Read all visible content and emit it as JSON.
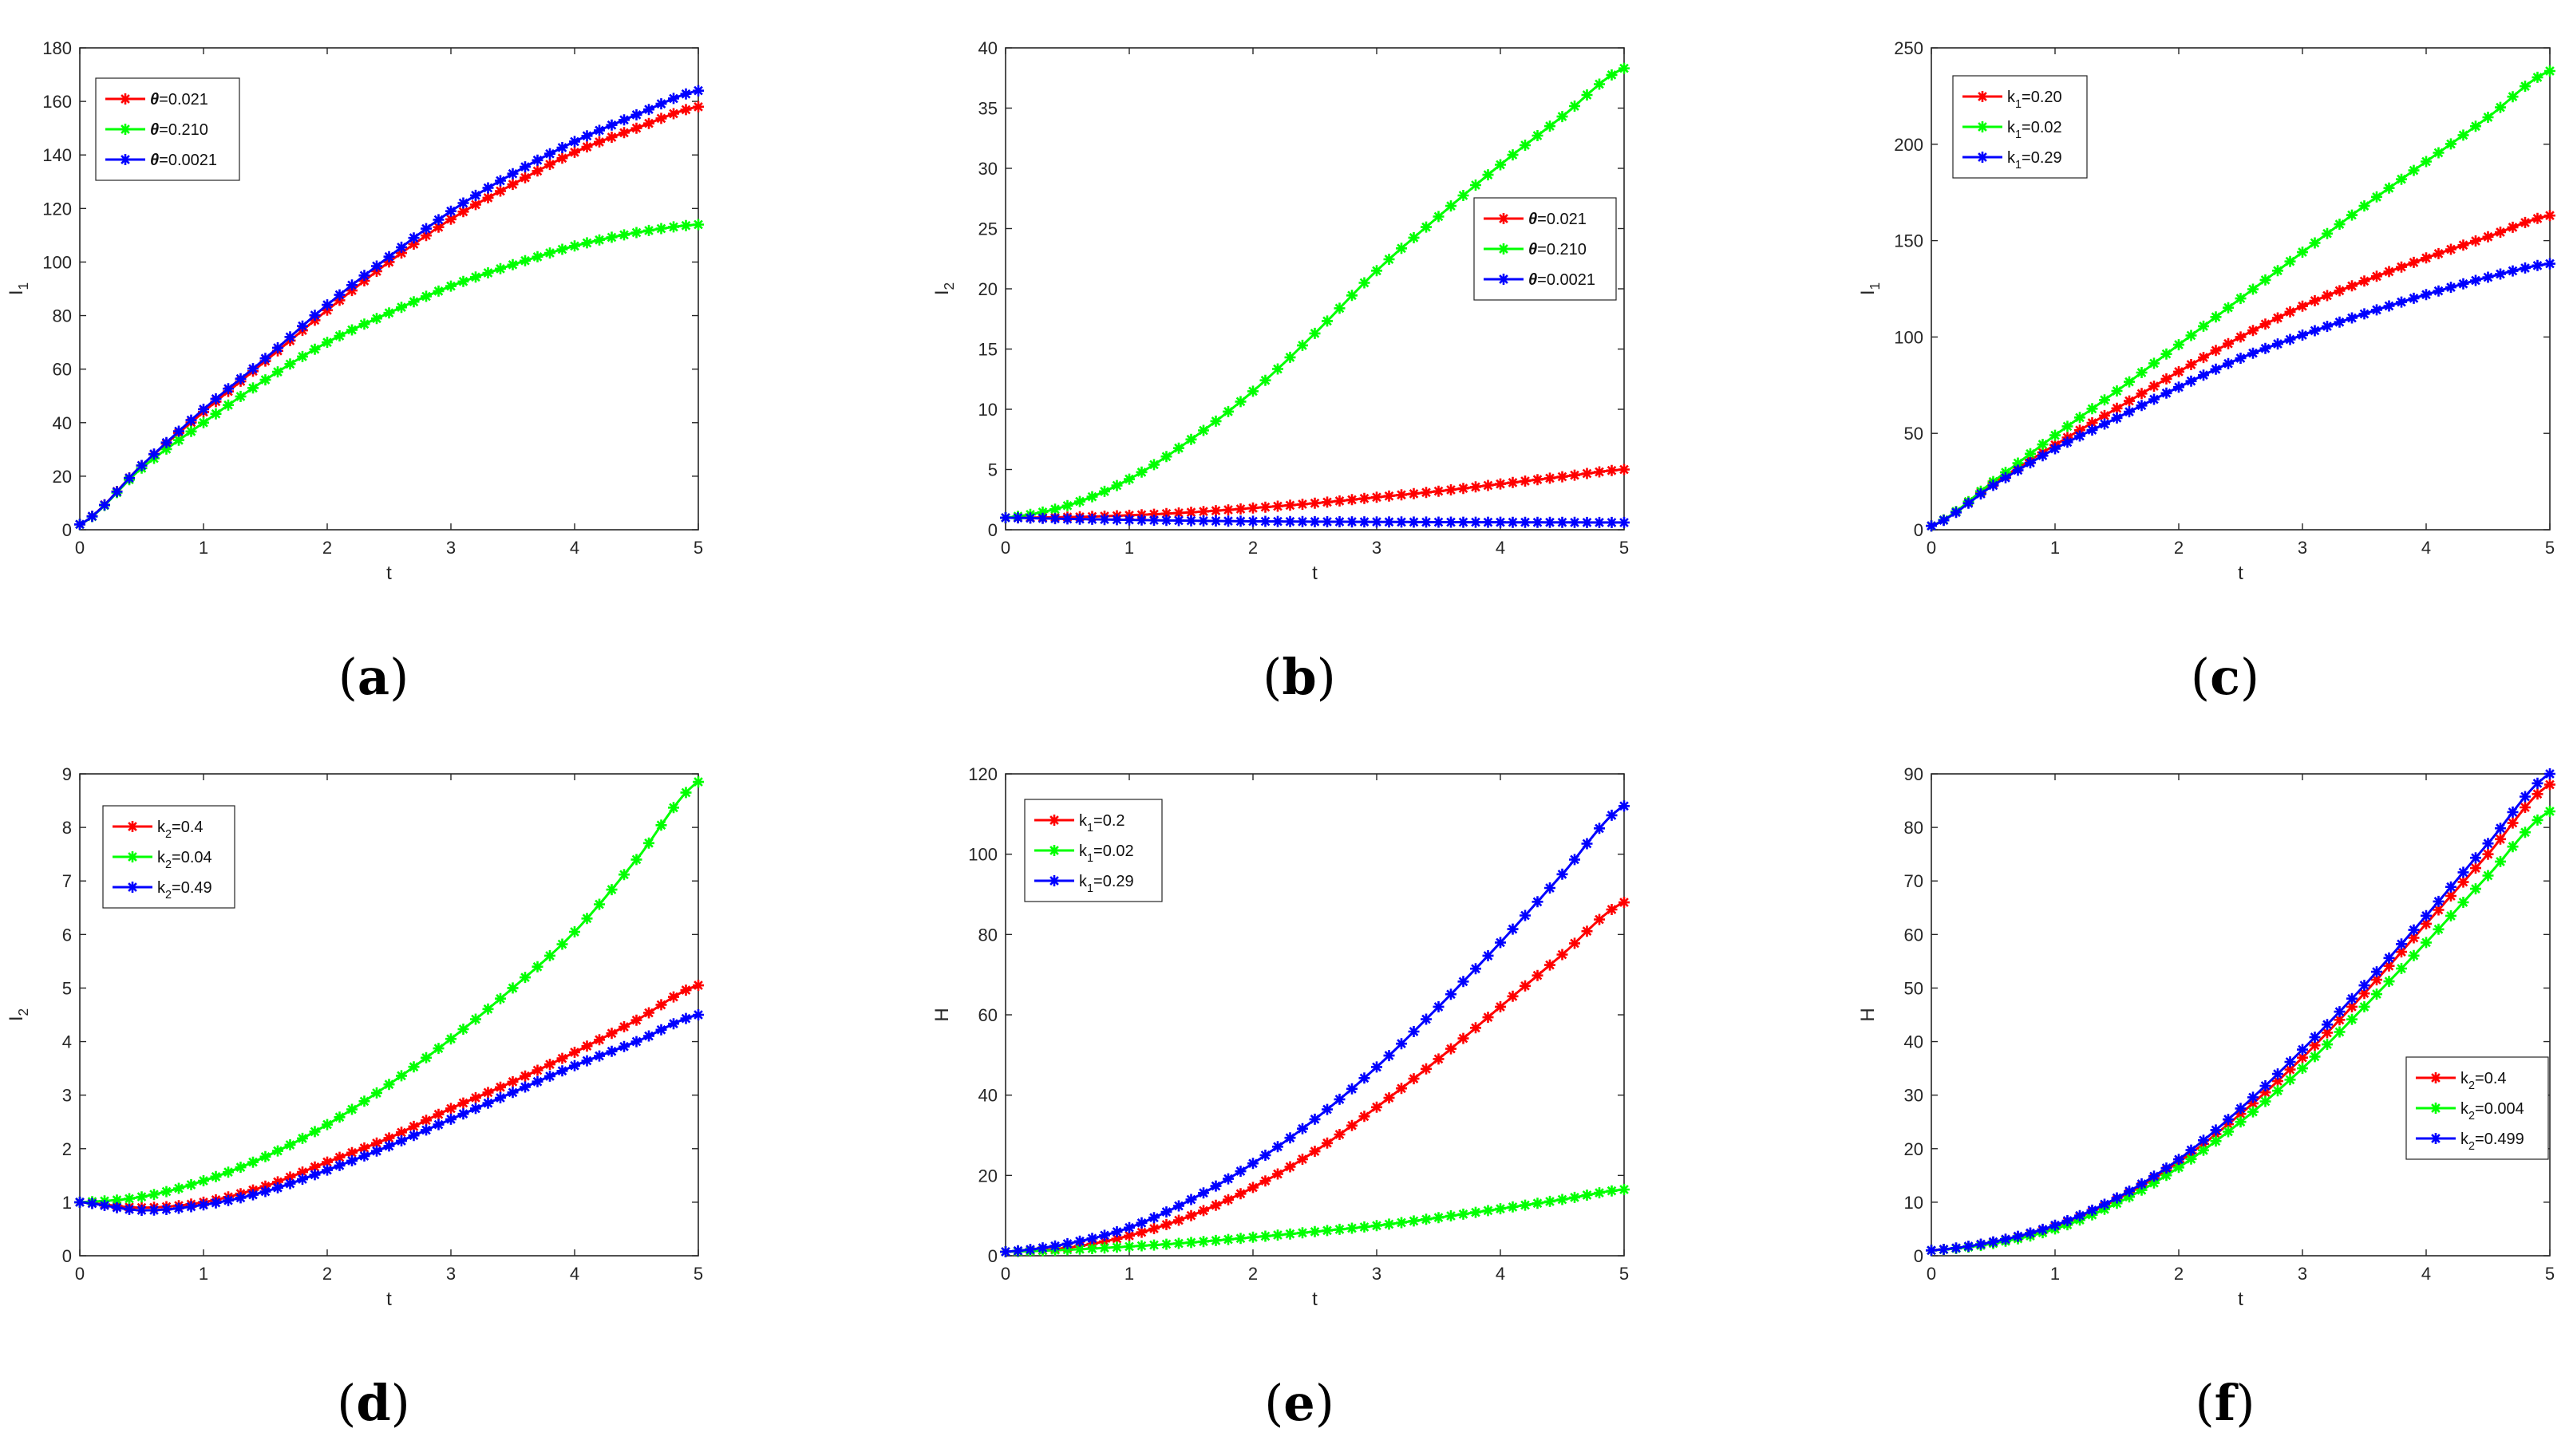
{
  "chart_data": [
    {
      "id": "a",
      "type": "line",
      "caption": {
        "open": "(",
        "letter": "a",
        "close": ")"
      },
      "xlabel": {
        "base": "t",
        "sub": ""
      },
      "ylabel": {
        "base": "I",
        "sub": "1"
      },
      "xlim": [
        0,
        5
      ],
      "ylim": [
        0,
        180
      ],
      "xticks": [
        0,
        1,
        2,
        3,
        4,
        5
      ],
      "yticks": [
        0,
        20,
        40,
        60,
        80,
        100,
        120,
        140,
        160,
        180
      ],
      "legend": {
        "position": "top-left"
      },
      "series": [
        {
          "name": {
            "sym": "θ",
            "sub": "",
            "value": "=0.021"
          },
          "color": "#ff0000",
          "x": [
            0,
            0.5,
            1,
            1.5,
            2,
            2.5,
            3,
            3.5,
            4,
            4.5,
            5
          ],
          "y": [
            2,
            24,
            44,
            63,
            82,
            100,
            116,
            129,
            141,
            150,
            158
          ]
        },
        {
          "name": {
            "sym": "θ",
            "sub": "",
            "value": "=0.210"
          },
          "color": "#00ff00",
          "x": [
            0,
            0.5,
            1,
            1.5,
            2,
            2.5,
            3,
            3.5,
            4,
            4.5,
            5
          ],
          "y": [
            2,
            23,
            40,
            56,
            70,
            81,
            91,
            99,
            106,
            111,
            114
          ]
        },
        {
          "name": {
            "sym": "θ",
            "sub": "",
            "value": "=0.0021"
          },
          "color": "#0000ff",
          "x": [
            0,
            0.5,
            1,
            1.5,
            2,
            2.5,
            3,
            3.5,
            4,
            4.5,
            5
          ],
          "y": [
            2,
            24,
            45,
            64,
            84,
            102,
            119,
            133,
            145,
            155,
            164
          ]
        }
      ]
    },
    {
      "id": "b",
      "type": "line",
      "caption": {
        "open": "(",
        "letter": "b",
        "close": ")"
      },
      "xlabel": {
        "base": "t",
        "sub": ""
      },
      "ylabel": {
        "base": "I",
        "sub": "2"
      },
      "xlim": [
        0,
        5
      ],
      "ylim": [
        0,
        40
      ],
      "xticks": [
        0,
        1,
        2,
        3,
        4,
        5
      ],
      "yticks": [
        0,
        5,
        10,
        15,
        20,
        25,
        30,
        35,
        40
      ],
      "legend": {
        "position": "right"
      },
      "series": [
        {
          "name": {
            "sym": "θ",
            "sub": "",
            "value": "=0.021"
          },
          "color": "#ff0000",
          "x": [
            0,
            0.5,
            1,
            1.5,
            2,
            2.5,
            3,
            3.5,
            4,
            4.5,
            5
          ],
          "y": [
            1.0,
            1.05,
            1.2,
            1.45,
            1.8,
            2.2,
            2.7,
            3.2,
            3.8,
            4.4,
            5.0
          ]
        },
        {
          "name": {
            "sym": "θ",
            "sub": "",
            "value": "=0.210"
          },
          "color": "#00ff00",
          "x": [
            0,
            0.5,
            1,
            1.5,
            2,
            2.5,
            3,
            3.5,
            4,
            4.5,
            5
          ],
          "y": [
            1.0,
            2.0,
            4.2,
            7.5,
            11.5,
            16.3,
            21.5,
            26.0,
            30.3,
            34.3,
            38.3
          ]
        },
        {
          "name": {
            "sym": "θ",
            "sub": "",
            "value": "=0.0021"
          },
          "color": "#0000ff",
          "x": [
            0,
            0.5,
            1,
            1.5,
            2,
            2.5,
            3,
            3.5,
            4,
            4.5,
            5
          ],
          "y": [
            1.0,
            0.9,
            0.82,
            0.75,
            0.7,
            0.67,
            0.65,
            0.63,
            0.62,
            0.61,
            0.6
          ]
        }
      ]
    },
    {
      "id": "c",
      "type": "line",
      "caption": {
        "open": "(",
        "letter": "c",
        "close": ")"
      },
      "xlabel": {
        "base": "t",
        "sub": ""
      },
      "ylabel": {
        "base": "I",
        "sub": "1"
      },
      "xlim": [
        0,
        5
      ],
      "ylim": [
        0,
        250
      ],
      "xticks": [
        0,
        1,
        2,
        3,
        4,
        5
      ],
      "yticks": [
        0,
        50,
        100,
        150,
        200,
        250
      ],
      "legend": {
        "position": "top-left"
      },
      "series": [
        {
          "name": {
            "sym": "k",
            "sub": "1",
            "value": "=0.20"
          },
          "color": "#ff0000",
          "x": [
            0,
            0.5,
            1,
            1.5,
            2,
            2.5,
            3,
            3.5,
            4,
            4.5,
            5
          ],
          "y": [
            2,
            24,
            44,
            63,
            82,
            100,
            116,
            129,
            141,
            152,
            163
          ]
        },
        {
          "name": {
            "sym": "k",
            "sub": "1",
            "value": "=0.02"
          },
          "color": "#00ff00",
          "x": [
            0,
            0.5,
            1,
            1.5,
            2,
            2.5,
            3,
            3.5,
            4,
            4.5,
            5
          ],
          "y": [
            2,
            25,
            49,
            72,
            96,
            120,
            144,
            168,
            191,
            214,
            238
          ]
        },
        {
          "name": {
            "sym": "k",
            "sub": "1",
            "value": "=0.29"
          },
          "color": "#0000ff",
          "x": [
            0,
            0.5,
            1,
            1.5,
            2,
            2.5,
            3,
            3.5,
            4,
            4.5,
            5
          ],
          "y": [
            2,
            23,
            42,
            58,
            74,
            89,
            101,
            112,
            122,
            131,
            138
          ]
        }
      ]
    },
    {
      "id": "d",
      "type": "line",
      "caption": {
        "open": "(",
        "letter": "d",
        "close": ")"
      },
      "xlabel": {
        "base": "t",
        "sub": ""
      },
      "ylabel": {
        "base": "I",
        "sub": "2"
      },
      "xlim": [
        0,
        5
      ],
      "ylim": [
        0,
        9
      ],
      "xticks": [
        0,
        1,
        2,
        3,
        4,
        5
      ],
      "yticks": [
        0,
        1,
        2,
        3,
        4,
        5,
        6,
        7,
        8,
        9
      ],
      "legend": {
        "position": "top-left"
      },
      "series": [
        {
          "name": {
            "sym": "k",
            "sub": "2",
            "value": "=0.4"
          },
          "color": "#ff0000",
          "x": [
            0,
            0.5,
            1,
            1.5,
            2,
            2.5,
            3,
            3.5,
            4,
            4.5,
            5
          ],
          "y": [
            1.0,
            0.9,
            1.0,
            1.3,
            1.75,
            2.2,
            2.75,
            3.25,
            3.8,
            4.4,
            5.05
          ]
        },
        {
          "name": {
            "sym": "k",
            "sub": "2",
            "value": "=0.04"
          },
          "color": "#00ff00",
          "x": [
            0,
            0.5,
            1,
            1.5,
            2,
            2.5,
            3,
            3.5,
            4,
            4.5,
            5
          ],
          "y": [
            1.0,
            1.1,
            1.4,
            1.85,
            2.45,
            3.2,
            4.05,
            5.0,
            6.05,
            7.4,
            8.85
          ]
        },
        {
          "name": {
            "sym": "k",
            "sub": "2",
            "value": "=0.49"
          },
          "color": "#0000ff",
          "x": [
            0,
            0.5,
            1,
            1.5,
            2,
            2.5,
            3,
            3.5,
            4,
            4.5,
            5
          ],
          "y": [
            1.0,
            0.85,
            0.95,
            1.2,
            1.6,
            2.05,
            2.55,
            3.05,
            3.55,
            4.0,
            4.5
          ]
        }
      ]
    },
    {
      "id": "e",
      "type": "line",
      "caption": {
        "open": "(",
        "letter": "e",
        "close": ")"
      },
      "xlabel": {
        "base": "t",
        "sub": ""
      },
      "ylabel": {
        "base": "H",
        "sub": ""
      },
      "xlim": [
        0,
        5
      ],
      "ylim": [
        0,
        120
      ],
      "xticks": [
        0,
        1,
        2,
        3,
        4,
        5
      ],
      "yticks": [
        0,
        20,
        40,
        60,
        80,
        100,
        120
      ],
      "legend": {
        "position": "top-left"
      },
      "series": [
        {
          "name": {
            "sym": "k",
            "sub": "1",
            "value": "=0.2"
          },
          "color": "#ff0000",
          "x": [
            0,
            0.5,
            1,
            1.5,
            2,
            2.5,
            3,
            3.5,
            4,
            4.5,
            5
          ],
          "y": [
            1,
            2,
            5,
            10,
            17,
            26,
            37,
            49,
            62,
            75,
            88
          ]
        },
        {
          "name": {
            "sym": "k",
            "sub": "1",
            "value": "=0.02"
          },
          "color": "#00ff00",
          "x": [
            0,
            0.5,
            1,
            1.5,
            2,
            2.5,
            3,
            3.5,
            4,
            4.5,
            5
          ],
          "y": [
            1,
            1.5,
            2.3,
            3.3,
            4.6,
            6,
            7.5,
            9.5,
            11.7,
            14,
            16.5
          ]
        },
        {
          "name": {
            "sym": "k",
            "sub": "1",
            "value": "=0.29"
          },
          "color": "#0000ff",
          "x": [
            0,
            0.5,
            1,
            1.5,
            2,
            2.5,
            3,
            3.5,
            4,
            4.5,
            5
          ],
          "y": [
            1,
            3,
            7,
            14,
            23,
            34,
            47,
            62,
            78,
            95,
            112
          ]
        }
      ]
    },
    {
      "id": "f",
      "type": "line",
      "caption": {
        "open": "(",
        "letter": "f",
        "close": ")"
      },
      "xlabel": {
        "base": "t",
        "sub": ""
      },
      "ylabel": {
        "base": "H",
        "sub": ""
      },
      "xlim": [
        0,
        5
      ],
      "ylim": [
        0,
        90
      ],
      "xticks": [
        0,
        1,
        2,
        3,
        4,
        5
      ],
      "yticks": [
        0,
        10,
        20,
        30,
        40,
        50,
        60,
        70,
        80,
        90
      ],
      "legend": {
        "position": "right"
      },
      "series": [
        {
          "name": {
            "sym": "k",
            "sub": "2",
            "value": "=0.4"
          },
          "color": "#ff0000",
          "x": [
            0,
            0.5,
            1,
            1.5,
            2,
            2.5,
            3,
            3.5,
            4,
            4.5,
            5
          ],
          "y": [
            1,
            2.5,
            5.5,
            10.5,
            17.5,
            26.5,
            37,
            49,
            62,
            75,
            88
          ]
        },
        {
          "name": {
            "sym": "k",
            "sub": "2",
            "value": "=0.004"
          },
          "color": "#00ff00",
          "x": [
            0,
            0.5,
            1,
            1.5,
            2,
            2.5,
            3,
            3.5,
            4,
            4.5,
            5
          ],
          "y": [
            1,
            2.3,
            5,
            9.8,
            16.5,
            25,
            35,
            46.5,
            58.5,
            71,
            83
          ]
        },
        {
          "name": {
            "sym": "k",
            "sub": "2",
            "value": "=0.499"
          },
          "color": "#0000ff",
          "x": [
            0,
            0.5,
            1,
            1.5,
            2,
            2.5,
            3,
            3.5,
            4,
            4.5,
            5
          ],
          "y": [
            1,
            2.6,
            5.7,
            10.8,
            18,
            27.5,
            38.5,
            50.5,
            63.5,
            77,
            90
          ]
        }
      ]
    }
  ]
}
